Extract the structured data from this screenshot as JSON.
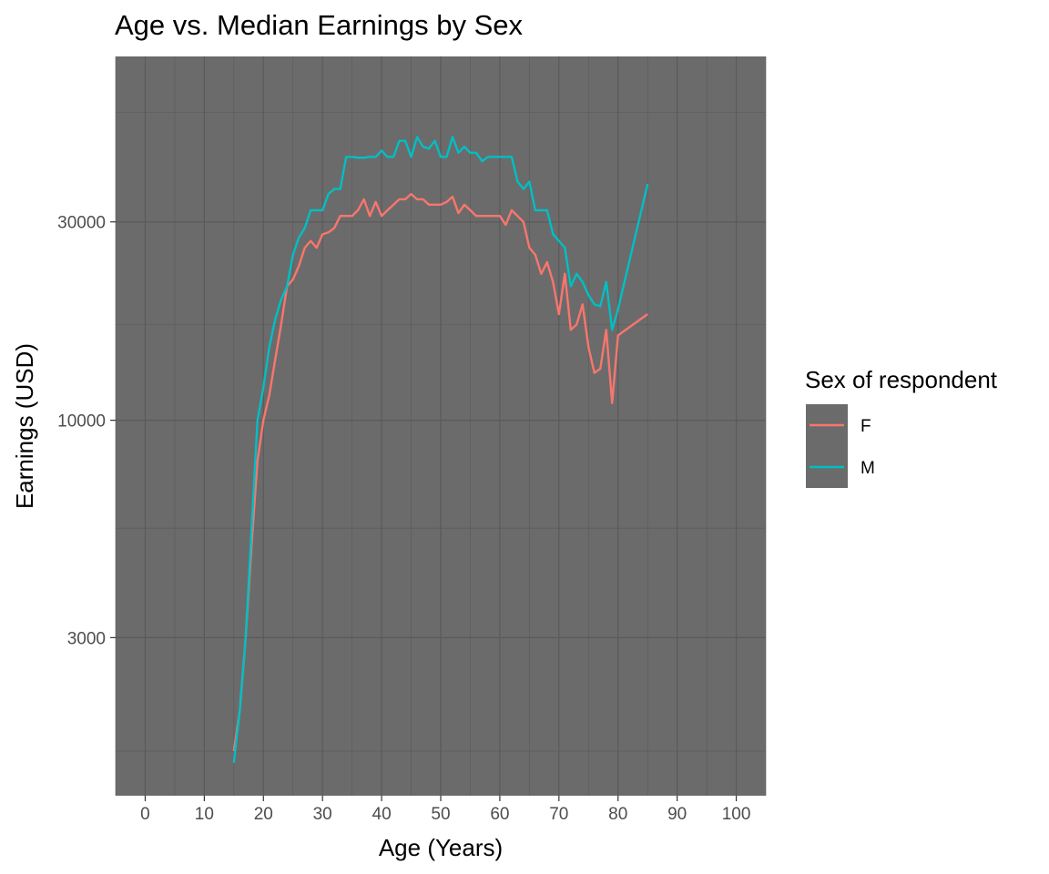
{
  "chart_data": {
    "type": "line",
    "title": "Age vs. Median Earnings by Sex",
    "xlabel": "Age (Years)",
    "ylabel": "Earnings (USD)",
    "xlim": [
      -5,
      105
    ],
    "ylim": [
      1250,
      75000
    ],
    "yscale": "log10",
    "x_ticks": [
      0,
      10,
      20,
      30,
      40,
      50,
      60,
      70,
      80,
      90,
      100
    ],
    "x_tick_labels": [
      "0",
      "10",
      "20",
      "30",
      "40",
      "50",
      "60",
      "70",
      "80",
      "90",
      "100"
    ],
    "y_ticks": [
      3000,
      10000,
      30000
    ],
    "y_tick_labels": [
      "3000",
      "10000",
      "30000"
    ],
    "y_minor_ticks": [
      1600,
      5500,
      17000,
      55000
    ],
    "grid": true,
    "panel_background": "#6b6b6b",
    "grid_color": "#5a5a5a",
    "legend": {
      "title": "Sex of respondent",
      "position": "right"
    },
    "series": [
      {
        "name": "F",
        "color": "#F8766D",
        "x": [
          15,
          16,
          17,
          18,
          19,
          20,
          21,
          22,
          23,
          24,
          25,
          26,
          27,
          28,
          29,
          30,
          31,
          32,
          33,
          34,
          35,
          36,
          37,
          38,
          39,
          40,
          41,
          42,
          43,
          44,
          45,
          46,
          47,
          48,
          49,
          50,
          51,
          52,
          53,
          54,
          55,
          56,
          57,
          58,
          59,
          60,
          61,
          62,
          63,
          64,
          65,
          66,
          67,
          68,
          69,
          70,
          71,
          72,
          73,
          74,
          75,
          76,
          77,
          78,
          79,
          80,
          85
        ],
        "y": [
          1600,
          2000,
          3000,
          5000,
          8000,
          10000,
          11500,
          14000,
          17000,
          21000,
          21800,
          23500,
          26000,
          27000,
          26000,
          28000,
          28300,
          29000,
          31000,
          31000,
          31000,
          32000,
          34000,
          31000,
          33500,
          31000,
          32000,
          33000,
          34000,
          34000,
          35000,
          34000,
          34000,
          33000,
          33000,
          33000,
          33500,
          34500,
          31500,
          33000,
          32000,
          31000,
          31000,
          31000,
          31000,
          31000,
          29500,
          32000,
          31000,
          30000,
          26000,
          25000,
          22500,
          24000,
          21500,
          18000,
          22500,
          16500,
          17000,
          19000,
          15000,
          13000,
          13300,
          16500,
          11000,
          16000,
          18000
        ]
      },
      {
        "name": "M",
        "color": "#00BFC4",
        "x": [
          15,
          16,
          17,
          18,
          19,
          20,
          21,
          22,
          23,
          24,
          25,
          26,
          27,
          28,
          29,
          30,
          31,
          32,
          33,
          34,
          35,
          36,
          37,
          38,
          39,
          40,
          41,
          42,
          43,
          44,
          45,
          46,
          47,
          48,
          49,
          50,
          51,
          52,
          53,
          54,
          55,
          56,
          57,
          58,
          59,
          60,
          61,
          62,
          63,
          64,
          65,
          66,
          67,
          68,
          69,
          70,
          71,
          72,
          73,
          74,
          75,
          76,
          77,
          78,
          79,
          80,
          85
        ],
        "y": [
          1500,
          2000,
          3000,
          5500,
          10000,
          12000,
          15000,
          17500,
          19500,
          21000,
          25000,
          27500,
          29000,
          32000,
          32000,
          32000,
          35000,
          36000,
          36000,
          43000,
          43000,
          42800,
          42800,
          43000,
          43000,
          44500,
          43000,
          43000,
          47000,
          47000,
          43000,
          48000,
          45500,
          45000,
          47000,
          43000,
          43000,
          48000,
          44000,
          45500,
          44000,
          44000,
          42000,
          43000,
          43000,
          43000,
          43000,
          43000,
          37500,
          36000,
          37500,
          32000,
          32000,
          32000,
          28000,
          27000,
          26000,
          21000,
          22500,
          21500,
          20000,
          19000,
          18800,
          21500,
          16500,
          18500,
          37000
        ]
      }
    ]
  }
}
